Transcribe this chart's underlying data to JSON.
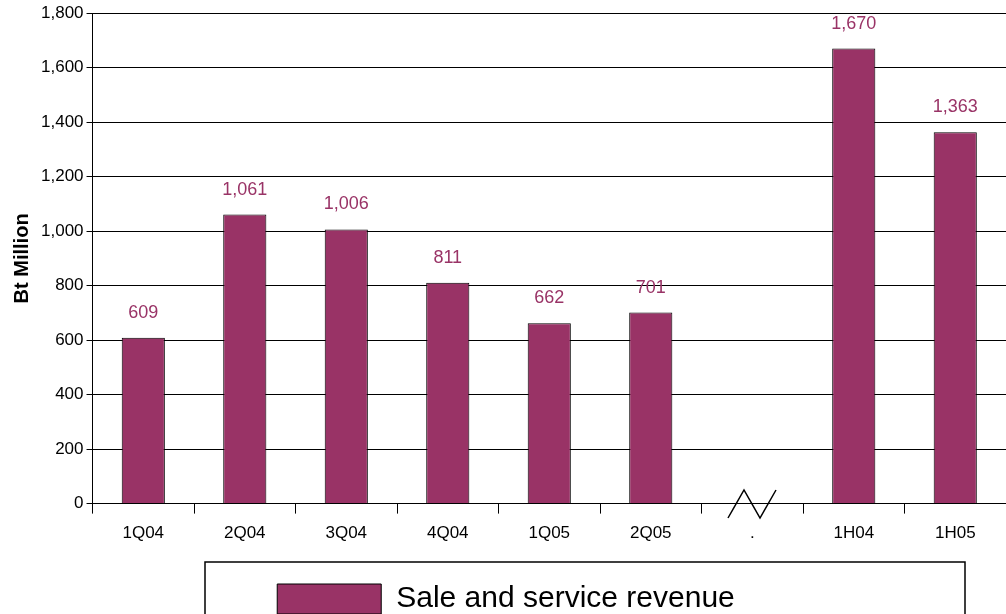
{
  "chart_data": {
    "type": "bar",
    "ylabel": "Bt Million",
    "categories": [
      "1Q04",
      "2Q04",
      "3Q04",
      "4Q04",
      "1Q05",
      "2Q05",
      ".",
      "1H04",
      "1H05"
    ],
    "series": [
      {
        "name": "Sale and service revenue",
        "color": "#993366",
        "values": [
          609,
          1061,
          1006,
          811,
          662,
          701,
          null,
          1670,
          1363
        ],
        "value_labels": [
          "609",
          "1,061",
          "1,006",
          "811",
          "662",
          "701",
          null,
          "1,670",
          "1,363"
        ]
      }
    ],
    "ylim": [
      0,
      1800
    ],
    "yticks": [
      {
        "value": 0,
        "label": "0"
      },
      {
        "value": 200,
        "label": "200"
      },
      {
        "value": 400,
        "label": "400"
      },
      {
        "value": 600,
        "label": "600"
      },
      {
        "value": 800,
        "label": "800"
      },
      {
        "value": 1000,
        "label": "1,000"
      },
      {
        "value": 1200,
        "label": "1,200"
      },
      {
        "value": 1400,
        "label": "1,400"
      },
      {
        "value": 1600,
        "label": "1,600"
      },
      {
        "value": 1800,
        "label": "1,800"
      }
    ],
    "grid": "y",
    "legend": "bottom"
  }
}
